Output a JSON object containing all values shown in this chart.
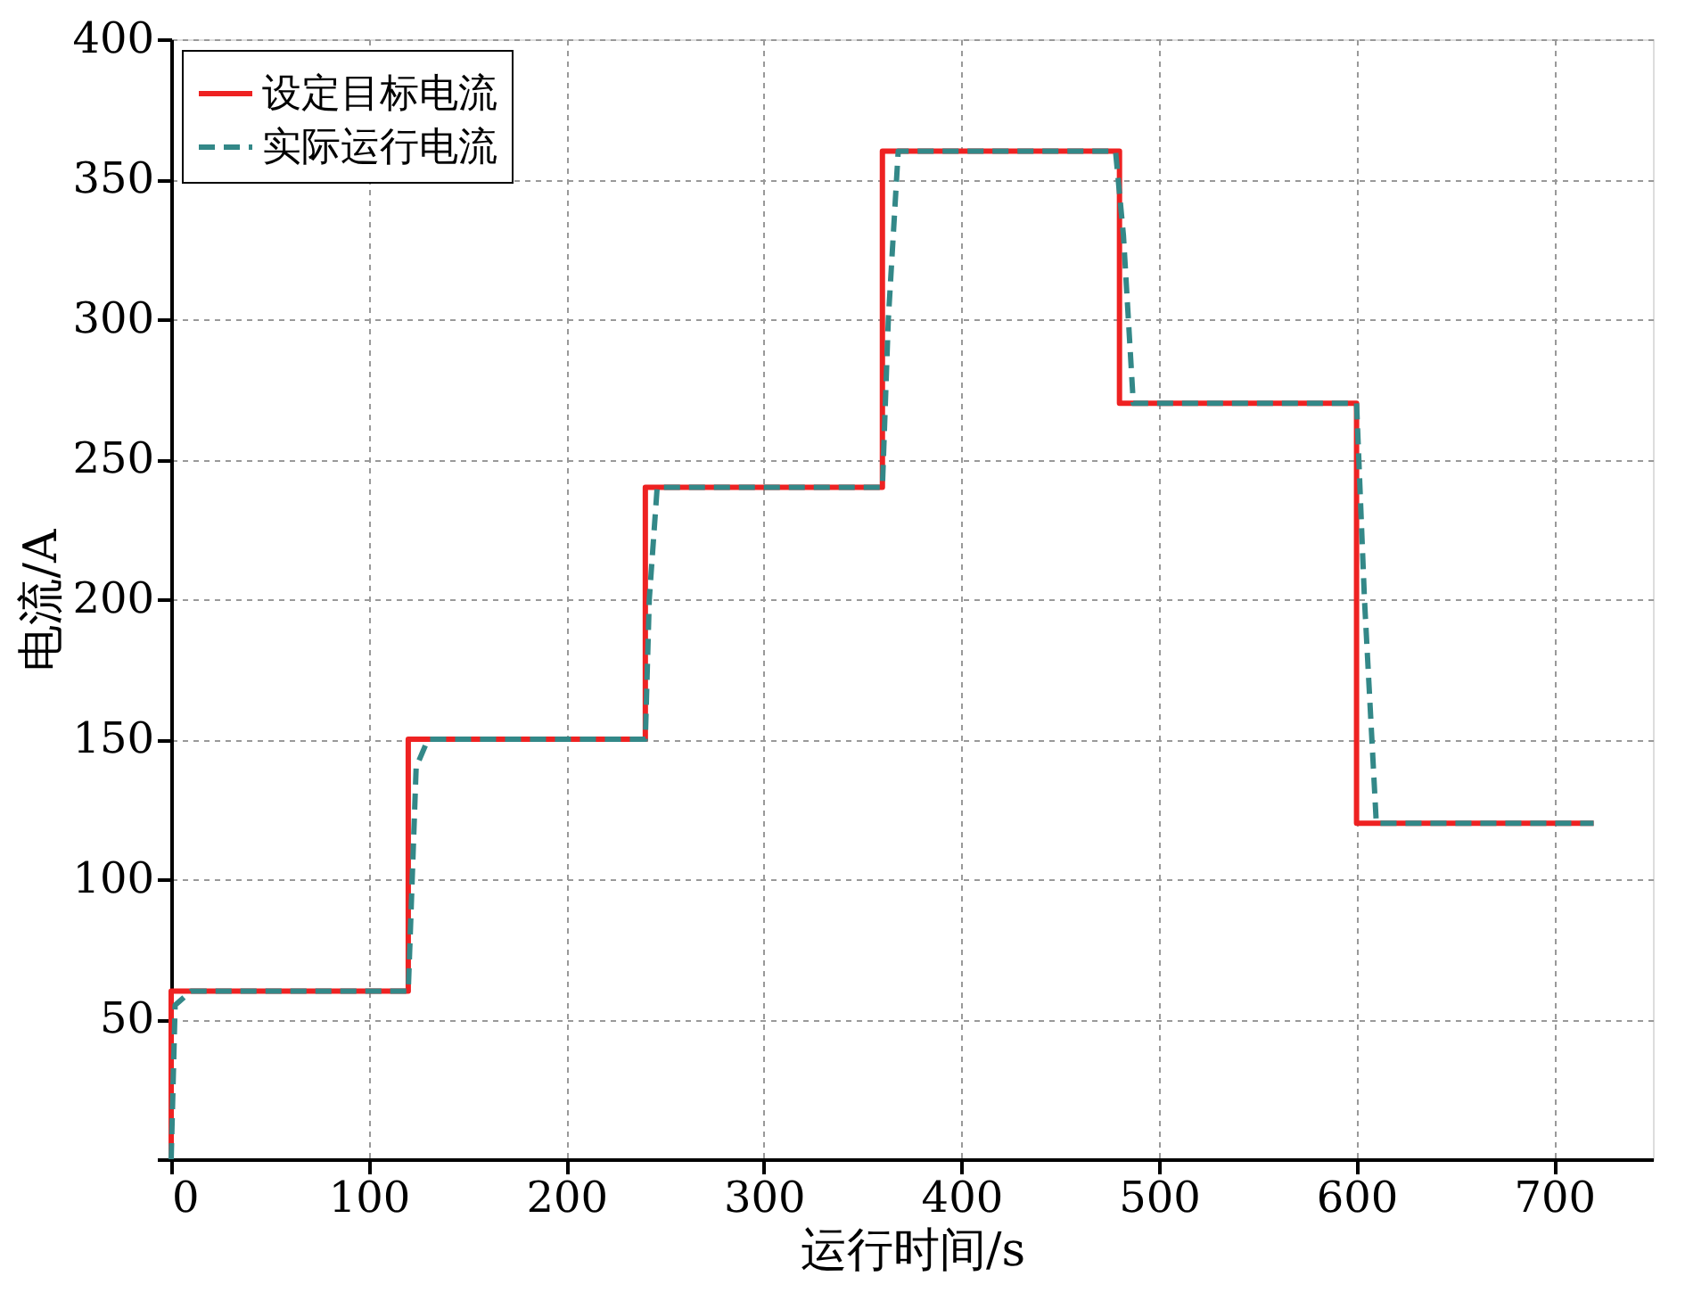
{
  "chart_data": {
    "type": "line",
    "xlabel": "运行时间/s",
    "ylabel": "电流/A",
    "xlim": [
      0,
      750
    ],
    "xticks": [
      0,
      100,
      200,
      300,
      400,
      500,
      600,
      700
    ],
    "ylim": [
      0,
      400
    ],
    "yticks": [
      {
        "value": 0,
        "label": null
      },
      50,
      100,
      150,
      200,
      250,
      300,
      350,
      400
    ],
    "grid": true,
    "legend": "top left",
    "marker": "none",
    "series": [
      {
        "name": "设定目标电流",
        "color": "#ee2222",
        "line_style": "solid",
        "x": [
          0,
          0,
          120,
          120,
          240,
          240,
          360,
          360,
          480,
          480,
          600,
          600,
          720
        ],
        "values": [
          0,
          60,
          60,
          150,
          150,
          240,
          240,
          360,
          360,
          270,
          270,
          120,
          120
        ]
      },
      {
        "name": "实际运行电流",
        "color": "#338888",
        "line_style": "dashed",
        "x": [
          0,
          2,
          10,
          120,
          122,
          124,
          130,
          240,
          242,
          246,
          360,
          363,
          368,
          478,
          482,
          487,
          600,
          604,
          610,
          720
        ],
        "values": [
          0,
          55,
          60,
          60,
          100,
          140,
          150,
          150,
          200,
          240,
          240,
          300,
          360,
          360,
          330,
          270,
          270,
          200,
          120,
          120
        ]
      }
    ]
  }
}
